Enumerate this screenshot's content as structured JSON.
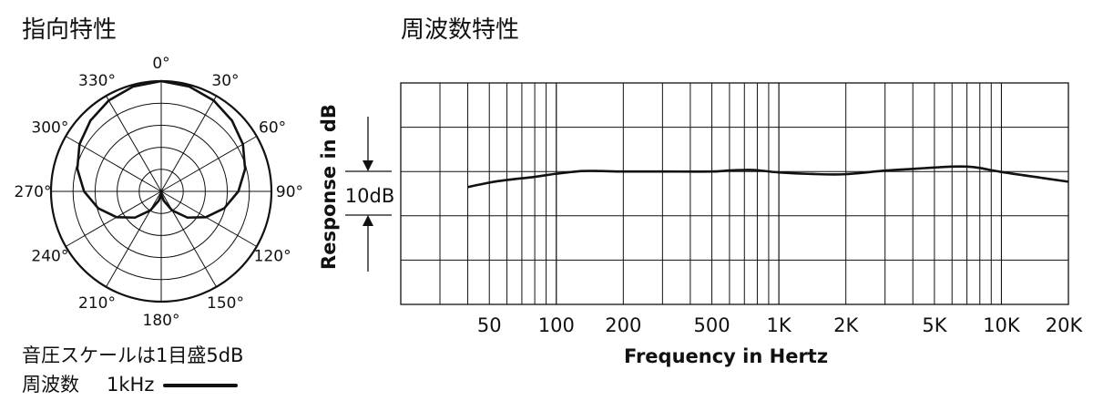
{
  "polar": {
    "title": "指向特性",
    "angles": [
      "0°",
      "30°",
      "60°",
      "90°",
      "120°",
      "150°",
      "180°",
      "210°",
      "240°",
      "270°",
      "300°",
      "330°"
    ],
    "scale_note": "音圧スケールは1目盛5dB",
    "freq_label": "周波数",
    "freq_value": "1kHz"
  },
  "freq": {
    "title": "周波数特性",
    "ylabel": "Response in dB",
    "xlabel": "Frequency in Hertz",
    "scale_label": "10dB",
    "ticks": [
      "50",
      "100",
      "200",
      "500",
      "1K",
      "2K",
      "5K",
      "10K",
      "20K"
    ]
  },
  "chart_data": [
    {
      "type": "polar",
      "title": "指向特性",
      "theta_labels": [
        "0°",
        "30°",
        "60°",
        "90°",
        "120°",
        "150°",
        "180°",
        "210°",
        "240°",
        "270°",
        "300°",
        "330°"
      ],
      "r_step_db": 5,
      "frequency": "1kHz",
      "series": [
        {
          "name": "1kHz",
          "theta_deg": [
            0,
            15,
            30,
            45,
            60,
            75,
            90,
            105,
            120,
            135,
            150,
            165,
            180,
            195,
            210,
            225,
            240,
            255,
            270,
            285,
            300,
            315,
            330,
            345
          ],
          "attenuation_db": [
            0,
            0.4,
            1.2,
            2.3,
            3.6,
            5.3,
            7.5,
            10.2,
            13.3,
            16.6,
            20,
            22.8,
            24.4,
            22.8,
            20,
            16.6,
            13.3,
            10.2,
            7.5,
            5.3,
            3.6,
            2.3,
            1.2,
            0.4
          ]
        }
      ]
    },
    {
      "type": "line",
      "title": "周波数特性",
      "xlabel": "Frequency in Hertz",
      "ylabel": "Response in dB",
      "xscale": "log",
      "xlim": [
        20,
        20000
      ],
      "ylim": [
        -30,
        20
      ],
      "series": [
        {
          "name": "",
          "x": [
            40,
            50,
            60,
            80,
            100,
            130,
            160,
            200,
            300,
            500,
            600,
            700,
            800,
            1000,
            1500,
            2000,
            3000,
            4000,
            5000,
            6000,
            7000,
            8000,
            10000,
            15000,
            20000
          ],
          "y": [
            -3.5,
            -2.5,
            -1.9,
            -1.2,
            -0.5,
            0.1,
            0.1,
            0,
            0,
            0,
            0.25,
            0.35,
            0.3,
            -0.2,
            -0.6,
            -0.6,
            0.2,
            0.6,
            0.9,
            1.1,
            1.1,
            0.8,
            -0.1,
            -1.4,
            -2.3
          ]
        }
      ]
    }
  ]
}
